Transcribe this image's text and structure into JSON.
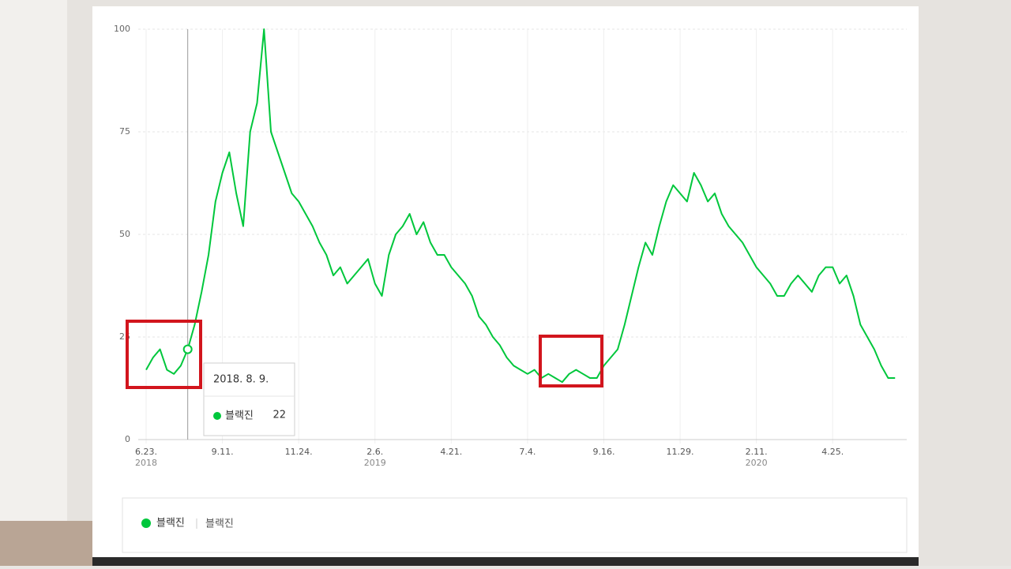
{
  "chart_data": {
    "type": "line",
    "categories": [
      "6.23.",
      null,
      null,
      null,
      null,
      null,
      null,
      null,
      null,
      null,
      null,
      "9.11.",
      null,
      null,
      null,
      null,
      null,
      null,
      null,
      null,
      null,
      null,
      "11.24.",
      null,
      null,
      null,
      null,
      null,
      null,
      null,
      null,
      null,
      null,
      "2.6.",
      null,
      null,
      null,
      null,
      null,
      null,
      null,
      null,
      null,
      null,
      "4.21.",
      null,
      null,
      null,
      null,
      null,
      null,
      null,
      null,
      null,
      null,
      "7.4.",
      null,
      null,
      null,
      null,
      null,
      null,
      null,
      null,
      null,
      null,
      "9.16.",
      null,
      null,
      null,
      null,
      null,
      null,
      null,
      null,
      null,
      null,
      "11.29.",
      null,
      null,
      null,
      null,
      null,
      null,
      null,
      null,
      null,
      null,
      "2.11.",
      null,
      null,
      null,
      null,
      null,
      null,
      null,
      null,
      null,
      null,
      "4.25.",
      null,
      null,
      null,
      null,
      null,
      null,
      null,
      null,
      null
    ],
    "category_years": [
      "2018",
      null,
      null,
      null,
      null,
      null,
      null,
      null,
      null,
      null,
      null,
      null,
      null,
      null,
      null,
      null,
      null,
      null,
      null,
      null,
      null,
      null,
      null,
      null,
      null,
      null,
      null,
      null,
      null,
      null,
      null,
      null,
      null,
      "2019",
      null,
      null,
      null,
      null,
      null,
      null,
      null,
      null,
      null,
      null,
      null,
      null,
      null,
      null,
      null,
      null,
      null,
      null,
      null,
      null,
      null,
      null,
      null,
      null,
      null,
      null,
      null,
      null,
      null,
      null,
      null,
      null,
      null,
      null,
      null,
      null,
      null,
      null,
      null,
      null,
      null,
      null,
      null,
      null,
      null,
      null,
      null,
      null,
      null,
      null,
      null,
      null,
      null,
      null,
      "2020",
      null,
      null,
      null,
      null,
      null,
      null,
      null,
      null,
      null,
      null,
      null,
      null,
      null,
      null,
      null,
      null,
      null,
      null,
      null,
      null
    ],
    "series": [
      {
        "name": "블랙진",
        "color": "#00c73c",
        "values": [
          17,
          20,
          22,
          17,
          16,
          18,
          22,
          28,
          36,
          45,
          58,
          65,
          70,
          60,
          52,
          75,
          82,
          100,
          75,
          70,
          65,
          60,
          58,
          55,
          52,
          48,
          45,
          40,
          42,
          38,
          40,
          42,
          44,
          38,
          35,
          45,
          50,
          52,
          55,
          50,
          53,
          48,
          45,
          45,
          42,
          40,
          38,
          35,
          30,
          28,
          25,
          23,
          20,
          18,
          17,
          16,
          17,
          15,
          16,
          15,
          14,
          16,
          17,
          16,
          15,
          15,
          18,
          20,
          22,
          28,
          35,
          42,
          48,
          45,
          52,
          58,
          62,
          60,
          58,
          65,
          62,
          58,
          60,
          55,
          52,
          50,
          48,
          45,
          42,
          40,
          38,
          35,
          35,
          38,
          40,
          38,
          36,
          40,
          42,
          42,
          38,
          40,
          35,
          28,
          25,
          22,
          18,
          15,
          15
        ]
      }
    ],
    "ylim": [
      0,
      100
    ],
    "yticks": [
      0,
      25,
      50,
      75,
      100
    ],
    "grid": true,
    "tooltip": {
      "date": "2018. 8. 9.",
      "name": "블랙진",
      "value": 22
    },
    "legend": {
      "name": "블랙진",
      "keyword": "블랙진"
    }
  }
}
